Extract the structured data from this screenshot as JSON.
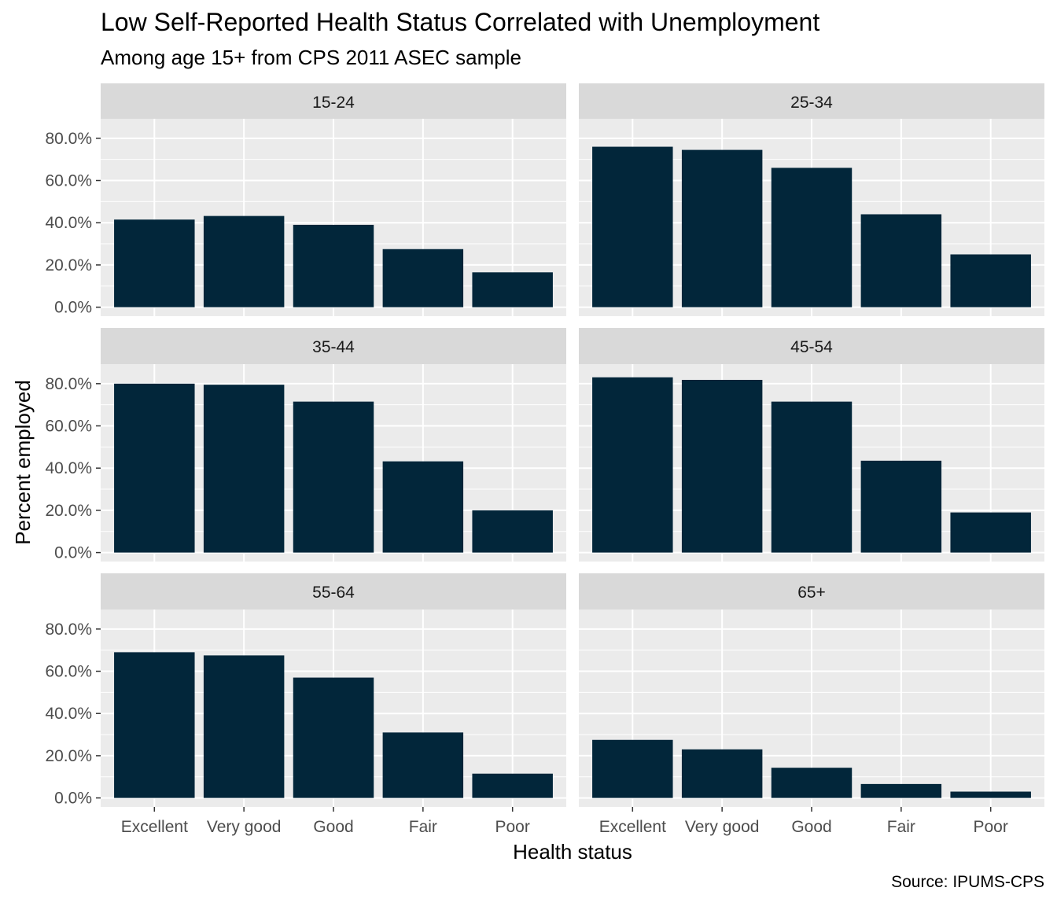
{
  "title": "Low Self-Reported Health Status Correlated with Unemployment",
  "subtitle": "Among age 15+ from CPS 2011 ASEC sample",
  "caption": "Source: IPUMS-CPS",
  "colors": {
    "bar": "#02263a",
    "panel_bg": "#ebebeb",
    "strip_bg": "#d9d9d9",
    "grid": "#ffffff"
  },
  "chart_data": {
    "type": "bar",
    "layout": "facet_wrap 3 rows x 2 columns",
    "xlabel": "Health status",
    "ylabel": "Percent employed",
    "categories": [
      "Excellent",
      "Very good",
      "Good",
      "Fair",
      "Poor"
    ],
    "y_ticks": [
      "0.0%",
      "20.0%",
      "40.0%",
      "60.0%",
      "80.0%"
    ],
    "ylim": [
      0,
      0.85
    ],
    "grid": true,
    "legend": "none",
    "panels": [
      {
        "name": "15-24",
        "values": [
          0.415,
          0.432,
          0.39,
          0.275,
          0.165
        ]
      },
      {
        "name": "25-34",
        "values": [
          0.76,
          0.745,
          0.66,
          0.44,
          0.25
        ]
      },
      {
        "name": "35-44",
        "values": [
          0.8,
          0.795,
          0.715,
          0.432,
          0.2
        ]
      },
      {
        "name": "45-54",
        "values": [
          0.83,
          0.818,
          0.715,
          0.435,
          0.19
        ]
      },
      {
        "name": "55-64",
        "values": [
          0.69,
          0.675,
          0.57,
          0.31,
          0.115
        ]
      },
      {
        "name": "65+",
        "values": [
          0.275,
          0.23,
          0.143,
          0.066,
          0.03
        ]
      }
    ]
  }
}
